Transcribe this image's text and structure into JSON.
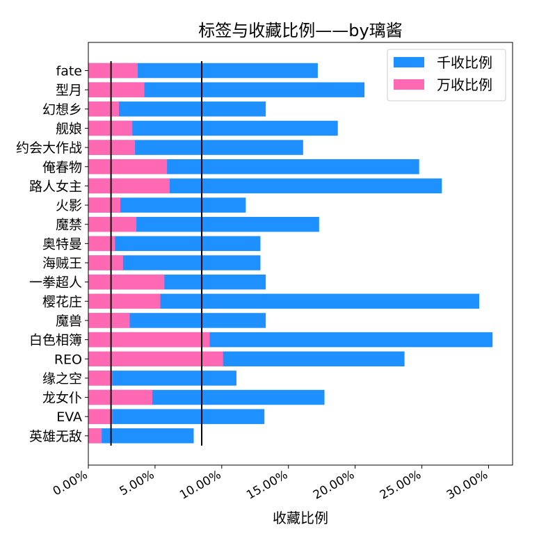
{
  "chart_data": {
    "type": "bar",
    "orientation": "horizontal",
    "title": "标签与收藏比例——by璃酱",
    "xlabel": "收藏比例",
    "ylabel": "",
    "xlim": [
      0,
      31.8
    ],
    "x_ticks": [
      0,
      5,
      10,
      15,
      20,
      25,
      30
    ],
    "x_tick_labels": [
      "0.00%",
      "5.00%",
      "10.00%",
      "15.00%",
      "20.00%",
      "25.00%",
      "30.00%"
    ],
    "categories": [
      "fate",
      "型月",
      "幻想乡",
      "舰娘",
      "约会大作战",
      "俺春物",
      "路人女主",
      "火影",
      "魔禁",
      "奥特曼",
      "海贼王",
      "一拳超人",
      "樱花庄",
      "魔兽",
      "白色相簿",
      "REO",
      "缘之空",
      "龙女仆",
      "EVA",
      "英雄无敌"
    ],
    "series": [
      {
        "name": "千收比例",
        "color": "#1e90ff",
        "values": [
          17.2,
          20.7,
          13.3,
          18.7,
          16.1,
          24.8,
          26.5,
          11.8,
          17.3,
          12.9,
          12.9,
          13.3,
          29.3,
          13.3,
          30.3,
          23.7,
          11.1,
          17.7,
          13.2,
          7.9
        ]
      },
      {
        "name": "万收比例",
        "color": "#ff69b4",
        "values": [
          3.7,
          4.2,
          2.3,
          3.3,
          3.5,
          5.9,
          6.1,
          2.4,
          3.6,
          2.0,
          2.6,
          5.7,
          5.4,
          3.1,
          9.1,
          10.1,
          1.8,
          4.8,
          1.8,
          1.0
        ]
      }
    ],
    "reference_lines": [
      1.7,
      8.5
    ],
    "legend_position": "top-right",
    "grid": false
  }
}
